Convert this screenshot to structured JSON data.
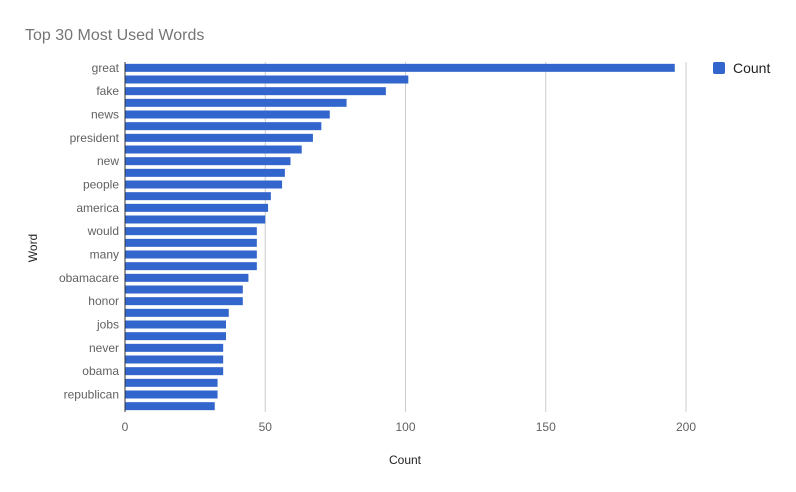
{
  "chart_data": {
    "type": "bar",
    "orientation": "horizontal",
    "title": "Top 30 Most Used Words",
    "xlabel": "Count",
    "ylabel": "Word",
    "xlim": [
      0,
      200
    ],
    "x_ticks": [
      0,
      50,
      100,
      150,
      200
    ],
    "grid": true,
    "legend": {
      "position": "top-right",
      "entries": [
        "Count"
      ]
    },
    "categories": [
      "great",
      "",
      "fake",
      "",
      "news",
      "",
      "president",
      "",
      "new",
      "",
      "people",
      "",
      "america",
      "",
      "would",
      "",
      "many",
      "",
      "obamacare",
      "",
      "honor",
      "",
      "jobs",
      "",
      "never",
      "",
      "obama",
      "",
      "republican",
      ""
    ],
    "series": [
      {
        "name": "Count",
        "color": "#3366cc",
        "values": [
          196,
          101,
          93,
          79,
          73,
          70,
          67,
          63,
          59,
          57,
          56,
          52,
          51,
          50,
          47,
          47,
          47,
          47,
          44,
          42,
          42,
          37,
          36,
          36,
          35,
          35,
          35,
          33,
          33,
          32
        ]
      }
    ]
  }
}
